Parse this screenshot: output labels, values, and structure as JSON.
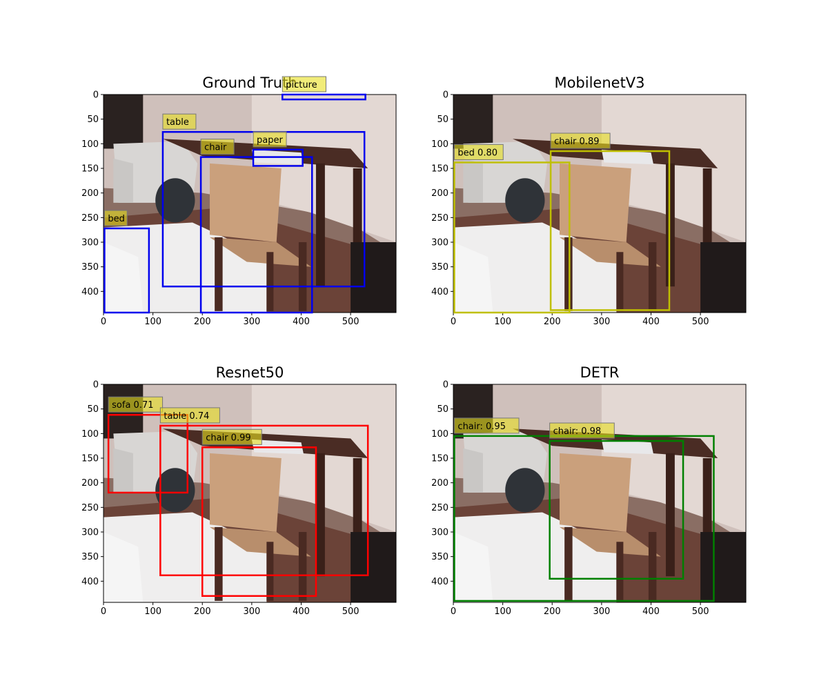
{
  "figure": {
    "axes": {
      "x_ticks": [
        0,
        100,
        200,
        300,
        400,
        500
      ],
      "y_ticks": [
        0,
        50,
        100,
        150,
        200,
        250,
        300,
        350,
        400
      ],
      "x_range": [
        0,
        592
      ],
      "y_range": [
        0,
        443
      ]
    },
    "panels": [
      {
        "title": "Ground Truth",
        "box_color": "#0000ee",
        "detections": [
          {
            "label": "picture",
            "box": [
              362,
              0,
              530,
              10
            ]
          },
          {
            "label": "table",
            "box": [
              120,
              76,
              528,
              390
            ]
          },
          {
            "label": "paper",
            "box": [
              303,
              112,
              403,
              145
            ]
          },
          {
            "label": "chair",
            "box": [
              197,
              127,
              422,
              443
            ]
          },
          {
            "label": "bed",
            "box": [
              2,
              272,
              92,
              443
            ]
          }
        ]
      },
      {
        "title": "MobilenetV3",
        "box_color": "#bfbf00",
        "detections": [
          {
            "label": "chair 0.89",
            "box": [
              197,
              115,
              437,
              438
            ]
          },
          {
            "label": "bed 0.80",
            "box": [
              2,
              138,
              235,
              443
            ]
          }
        ]
      },
      {
        "title": "Resnet50",
        "box_color": "#ff0000",
        "detections": [
          {
            "label": "sofa 0.71",
            "box": [
              10,
              62,
              170,
              220
            ]
          },
          {
            "label": "table 0.74",
            "box": [
              115,
              84,
              535,
              388
            ]
          },
          {
            "label": "chair 0.99",
            "box": [
              200,
              128,
              430,
              430
            ]
          }
        ]
      },
      {
        "title": "DETR",
        "box_color": "#008000",
        "detections": [
          {
            "label": "chair: 0.95",
            "box": [
              2,
              105,
              527,
              440
            ]
          },
          {
            "label": "chair: 0.98",
            "box": [
              195,
              115,
              465,
              395
            ]
          }
        ]
      }
    ]
  }
}
